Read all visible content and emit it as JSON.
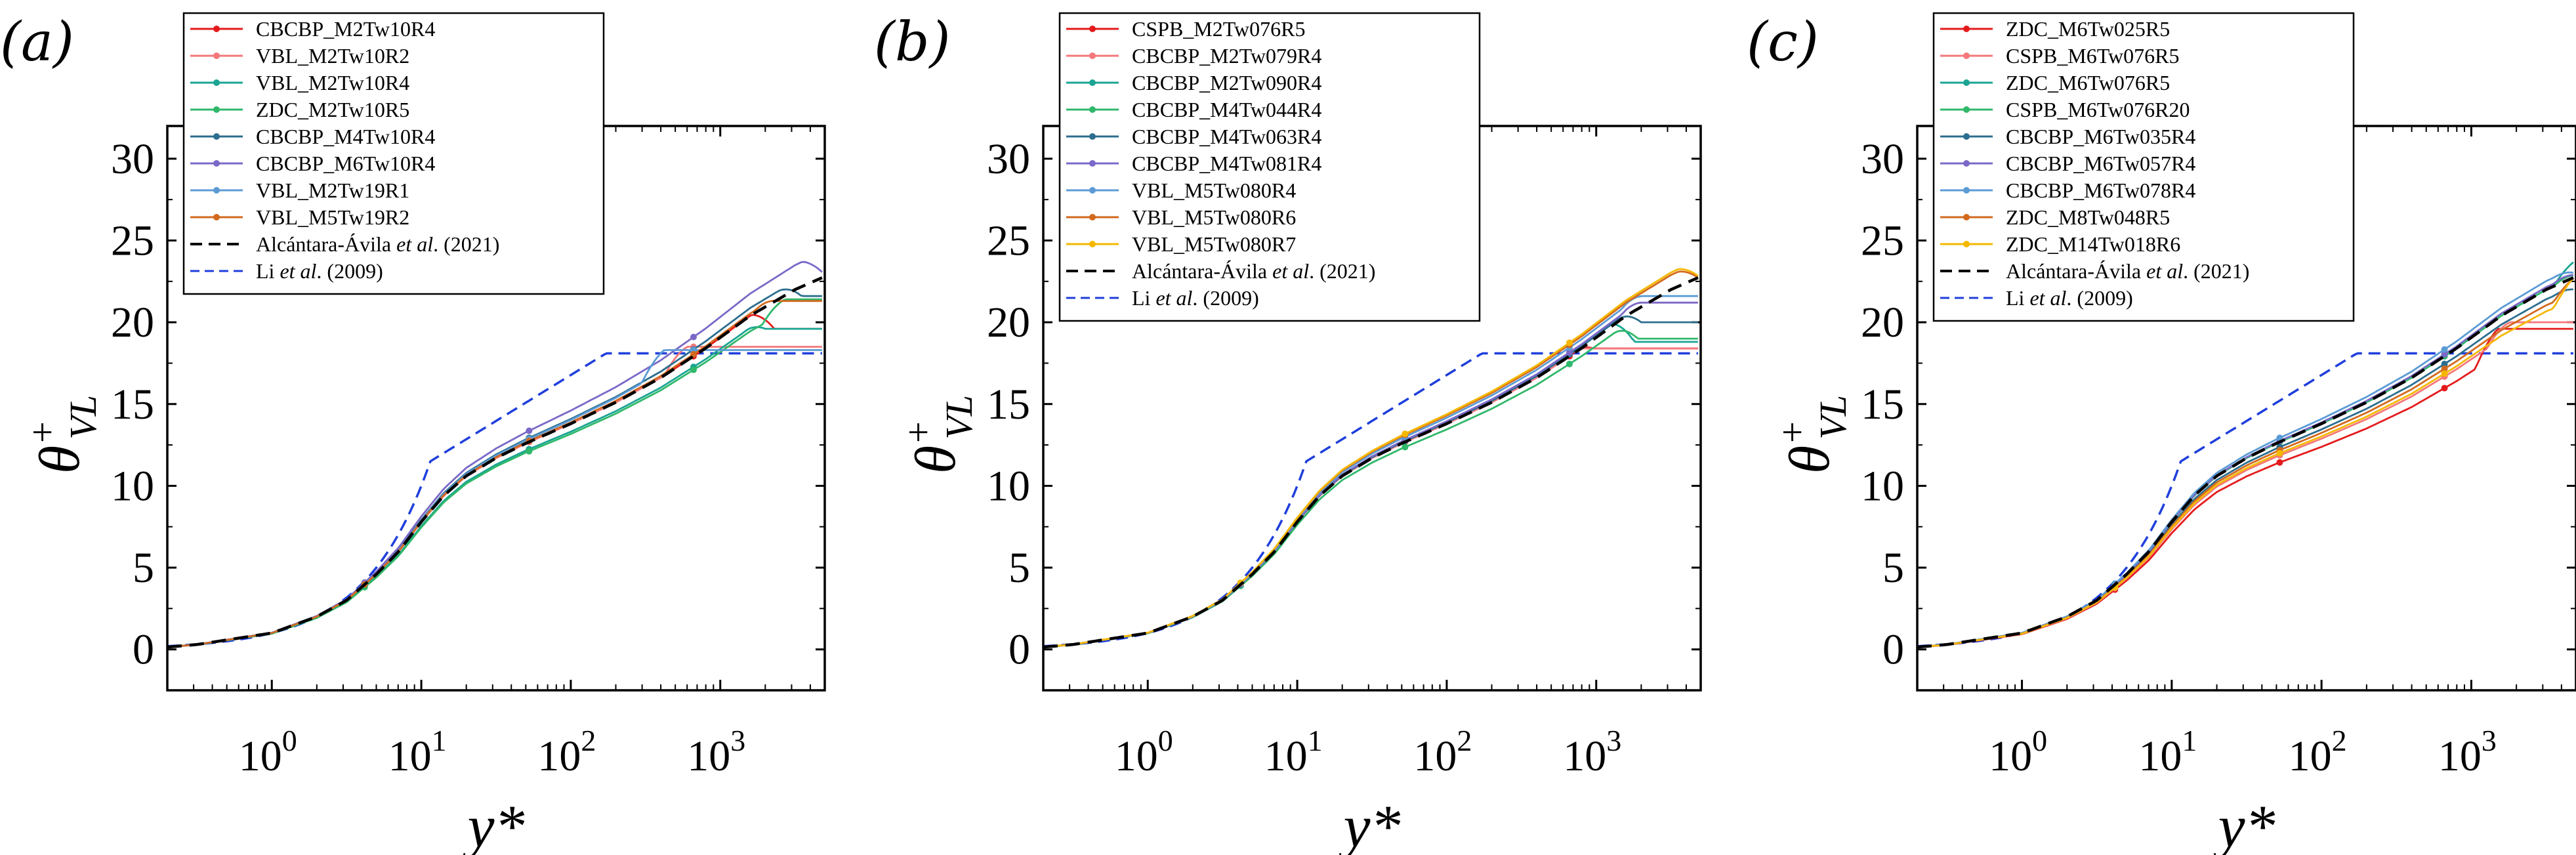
{
  "figure": {
    "label_y": "θ",
    "ylabel_sup": "+",
    "ylabel_sub": "VL",
    "xlabel": "y*"
  },
  "colors": {
    "red": "#e41a1c",
    "salmon": "#f4777a",
    "teal": "#1aa593",
    "green": "#2fb86a",
    "navy": "#2c6e8f",
    "purple": "#7b68c8",
    "skyblue": "#5b9bd5",
    "orange": "#d2691e",
    "yellow": "#f5b800",
    "black": "#000000",
    "blue": "#1f3fdc"
  },
  "chart_data": [
    {
      "type": "line",
      "panel": "(a)",
      "xscale": "log",
      "xlim": [
        0.2,
        5000
      ],
      "ylim": [
        -2.5,
        32
      ],
      "yticks": [
        "0",
        "5",
        "10",
        "15",
        "20",
        "25",
        "30"
      ],
      "xticks": [
        {
          "base": "10",
          "exp": "0"
        },
        {
          "base": "10",
          "exp": "1"
        },
        {
          "base": "10",
          "exp": "2"
        },
        {
          "base": "10",
          "exp": "3"
        }
      ],
      "legend_extra": [
        {
          "pre": "Alcántara-Ávila ",
          "it": "et al",
          "post": ". (2021)"
        },
        {
          "pre": "Li ",
          "it": "et al",
          "post": ". (2009)"
        }
      ],
      "series": [
        {
          "name": "CBCBP_M2Tw10R4",
          "color": "red",
          "end": 2300,
          "plateau": 19.6,
          "scale": 1.0,
          "shift": 0.0,
          "mark": "circle"
        },
        {
          "name": "VBL_M2Tw10R2",
          "color": "salmon",
          "end": 600,
          "plateau": 18.5,
          "scale": 1.0,
          "shift": 0.0,
          "mark": "circle"
        },
        {
          "name": "VBL_M2Tw10R4",
          "color": "teal",
          "end": 2000,
          "plateau": 19.6,
          "scale": 0.97,
          "shift": -0.1,
          "mark": "tri"
        },
        {
          "name": "ZDC_M2Tw10R5",
          "color": "green",
          "end": 2700,
          "plateau": 21.4,
          "scale": 0.96,
          "shift": -0.1,
          "mark": "tri-down"
        },
        {
          "name": "CBCBP_M4Tw10R4",
          "color": "navy",
          "end": 3500,
          "plateau": 21.6,
          "scale": 1.01,
          "shift": 0.2,
          "mark": "diamond"
        },
        {
          "name": "CBCBP_M6Tw10R4",
          "color": "purple",
          "end": 5000,
          "plateau": 22.9,
          "scale": 1.02,
          "shift": 0.7,
          "mark": "tri-left"
        },
        {
          "name": "VBL_M2Tw19R1",
          "color": "skyblue",
          "end": 420,
          "plateau": 18.3,
          "scale": 1.0,
          "shift": 0.3,
          "mark": "tri-right"
        },
        {
          "name": "VBL_M5Tw19R2",
          "color": "orange",
          "end": 2400,
          "plateau": 21.3,
          "scale": 1.0,
          "shift": 0.1,
          "mark": "circle"
        }
      ]
    },
    {
      "type": "line",
      "panel": "(b)",
      "xscale": "log",
      "xlim": [
        0.2,
        5000
      ],
      "ylim": [
        -2.5,
        32
      ],
      "yticks": [
        "0",
        "5",
        "10",
        "15",
        "20",
        "25",
        "30"
      ],
      "xticks": [
        {
          "base": "10",
          "exp": "0"
        },
        {
          "base": "10",
          "exp": "1"
        },
        {
          "base": "10",
          "exp": "2"
        },
        {
          "base": "10",
          "exp": "3"
        }
      ],
      "legend_extra": [
        {
          "pre": "Alcántara-Ávila ",
          "it": "et al",
          "post": ". (2021)"
        },
        {
          "pre": "Li ",
          "it": "et al",
          "post": ". (2009)"
        }
      ],
      "series": [
        {
          "name": "CSPB_M2Tw076R5",
          "color": "red",
          "end": 950,
          "plateau": 18.4,
          "scale": 1.0,
          "shift": 0.0,
          "mark": "circle"
        },
        {
          "name": "CBCBP_M2Tw079R4",
          "color": "salmon",
          "end": 800,
          "plateau": 18.4,
          "scale": 1.0,
          "shift": 0.0,
          "mark": "circle"
        },
        {
          "name": "CBCBP_M2Tw090R4",
          "color": "teal",
          "end": 1800,
          "plateau": 18.8,
          "scale": 1.0,
          "shift": 0.1,
          "mark": "tri"
        },
        {
          "name": "CBCBP_M4Tw044R4",
          "color": "green",
          "end": 1900,
          "plateau": 19.0,
          "scale": 0.98,
          "shift": -0.1,
          "mark": "tri-down"
        },
        {
          "name": "CBCBP_M4Tw063R4",
          "color": "navy",
          "end": 2000,
          "plateau": 20.0,
          "scale": 1.0,
          "shift": 0.1,
          "mark": "diamond"
        },
        {
          "name": "CBCBP_M4Tw081R4",
          "color": "purple",
          "end": 2100,
          "plateau": 21.2,
          "scale": 1.0,
          "shift": 0.2,
          "mark": "tri-left"
        },
        {
          "name": "VBL_M5Tw080R4",
          "color": "skyblue",
          "end": 2100,
          "plateau": 21.6,
          "scale": 1.01,
          "shift": 0.3,
          "mark": "tri-right"
        },
        {
          "name": "VBL_M5Tw080R6",
          "color": "orange",
          "end": 5000,
          "plateau": 22.6,
          "scale": 1.02,
          "shift": 0.3,
          "mark": "circle"
        },
        {
          "name": "VBL_M5Tw080R7",
          "color": "yellow",
          "end": 5000,
          "plateau": 22.7,
          "scale": 1.02,
          "shift": 0.4,
          "mark": "star"
        }
      ]
    },
    {
      "type": "line",
      "panel": "(c)",
      "xscale": "log",
      "xlim": [
        0.2,
        5000
      ],
      "ylim": [
        -2.5,
        32
      ],
      "yticks": [
        "0",
        "5",
        "10",
        "15",
        "20",
        "25",
        "30"
      ],
      "xticks": [
        {
          "base": "10",
          "exp": "0"
        },
        {
          "base": "10",
          "exp": "1"
        },
        {
          "base": "10",
          "exp": "2"
        },
        {
          "base": "10",
          "exp": "3"
        }
      ],
      "legend_extra": [
        {
          "pre": "Alcántara-Ávila ",
          "it": "et al",
          "post": ". (2021)"
        },
        {
          "pre": "Li ",
          "it": "et al",
          "post": ". (2009)"
        }
      ],
      "series": [
        {
          "name": "ZDC_M6Tw025R5",
          "color": "red",
          "end": 1500,
          "plateau": 19.6,
          "scale": 0.93,
          "shift": -0.6,
          "mark": "circle"
        },
        {
          "name": "CSPB_M6Tw076R5",
          "color": "salmon",
          "end": 1800,
          "plateau": 20.0,
          "scale": 0.95,
          "shift": -0.3,
          "mark": "circle"
        },
        {
          "name": "ZDC_M6Tw076R5",
          "color": "teal",
          "end": 5000,
          "plateau": 23.8,
          "scale": 1.0,
          "shift": 0.0,
          "mark": "tri"
        },
        {
          "name": "CSPB_M6Tw076R20",
          "color": "green",
          "end": 5000,
          "plateau": 22.9,
          "scale": 1.0,
          "shift": 0.0,
          "mark": "tri-down"
        },
        {
          "name": "CBCBP_M6Tw035R4",
          "color": "navy",
          "end": 5000,
          "plateau": 22.0,
          "scale": 0.98,
          "shift": -0.1,
          "mark": "diamond"
        },
        {
          "name": "CBCBP_M6Tw057R4",
          "color": "purple",
          "end": 5000,
          "plateau": 22.9,
          "scale": 1.0,
          "shift": 0.1,
          "mark": "tri-left"
        },
        {
          "name": "CBCBP_M6Tw078R4",
          "color": "skyblue",
          "end": 5000,
          "plateau": 23.0,
          "scale": 1.01,
          "shift": 0.2,
          "mark": "tri-right"
        },
        {
          "name": "ZDC_M8Tw048R5",
          "color": "orange",
          "end": 5000,
          "plateau": 22.8,
          "scale": 0.97,
          "shift": -0.2,
          "mark": "circle"
        },
        {
          "name": "ZDC_M14Tw018R6",
          "color": "yellow",
          "end": 5000,
          "plateau": 22.9,
          "scale": 0.96,
          "shift": -0.3,
          "mark": "star"
        }
      ]
    }
  ]
}
